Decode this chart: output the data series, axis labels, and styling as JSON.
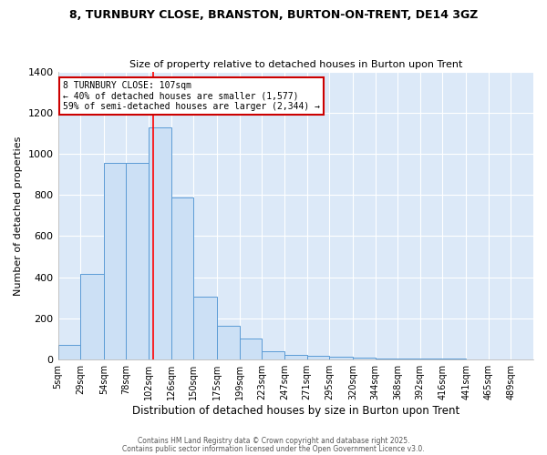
{
  "title1": "8, TURNBURY CLOSE, BRANSTON, BURTON-ON-TRENT, DE14 3GZ",
  "title2": "Size of property relative to detached houses in Burton upon Trent",
  "xlabel": "Distribution of detached houses by size in Burton upon Trent",
  "ylabel": "Number of detached properties",
  "categories": [
    "5sqm",
    "29sqm",
    "54sqm",
    "78sqm",
    "102sqm",
    "126sqm",
    "150sqm",
    "175sqm",
    "199sqm",
    "223sqm",
    "247sqm",
    "271sqm",
    "295sqm",
    "320sqm",
    "344sqm",
    "368sqm",
    "392sqm",
    "416sqm",
    "441sqm",
    "465sqm",
    "489sqm"
  ],
  "bar_heights": [
    70,
    415,
    955,
    955,
    1130,
    790,
    305,
    163,
    100,
    37,
    22,
    15,
    10,
    7,
    3,
    2,
    1,
    1,
    0,
    0,
    0
  ],
  "bar_edges": [
    5,
    29,
    54,
    78,
    102,
    126,
    150,
    175,
    199,
    223,
    247,
    271,
    295,
    320,
    344,
    368,
    392,
    416,
    441,
    465,
    489
  ],
  "bar_color_fill": "#cce0f5",
  "bar_color_edge": "#5b9bd5",
  "red_line_x": 107,
  "annotation_title": "8 TURNBURY CLOSE: 107sqm",
  "annotation_line1": "← 40% of detached houses are smaller (1,577)",
  "annotation_line2": "59% of semi-detached houses are larger (2,344) →",
  "annotation_box_color": "#ffffff",
  "annotation_box_edge": "#cc0000",
  "ylim": [
    0,
    1400
  ],
  "yticks": [
    0,
    200,
    400,
    600,
    800,
    1000,
    1200,
    1400
  ],
  "plot_bg_color": "#dce9f8",
  "fig_bg_color": "#ffffff",
  "grid_color": "#ffffff",
  "footer1": "Contains HM Land Registry data © Crown copyright and database right 2025.",
  "footer2": "Contains public sector information licensed under the Open Government Licence v3.0."
}
